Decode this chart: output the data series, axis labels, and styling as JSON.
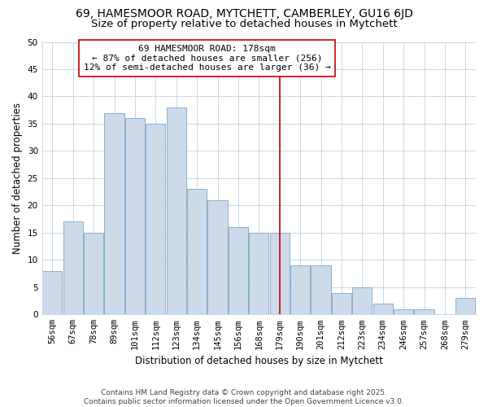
{
  "title1": "69, HAMESMOOR ROAD, MYTCHETT, CAMBERLEY, GU16 6JD",
  "title2": "Size of property relative to detached houses in Mytchett",
  "xlabel": "Distribution of detached houses by size in Mytchett",
  "ylabel": "Number of detached properties",
  "bar_labels": [
    "56sqm",
    "67sqm",
    "78sqm",
    "89sqm",
    "101sqm",
    "112sqm",
    "123sqm",
    "134sqm",
    "145sqm",
    "156sqm",
    "168sqm",
    "179sqm",
    "190sqm",
    "201sqm",
    "212sqm",
    "223sqm",
    "234sqm",
    "246sqm",
    "257sqm",
    "268sqm",
    "279sqm"
  ],
  "bar_values": [
    8,
    17,
    15,
    37,
    36,
    35,
    38,
    23,
    21,
    16,
    15,
    15,
    9,
    9,
    4,
    5,
    2,
    1,
    1,
    0,
    3
  ],
  "bar_color": "#ccdaea",
  "bar_edge_color": "#8ab0cc",
  "vline_x": 11,
  "vline_color": "#cc0000",
  "annotation_line1": "69 HAMESMOOR ROAD: 178sqm",
  "annotation_line2": "← 87% of detached houses are smaller (256)",
  "annotation_line3": "12% of semi-detached houses are larger (36) →",
  "annotation_box_color": "#ffffff",
  "annotation_box_edge": "#cc0000",
  "ylim": [
    0,
    50
  ],
  "yticks": [
    0,
    5,
    10,
    15,
    20,
    25,
    30,
    35,
    40,
    45,
    50
  ],
  "footer1": "Contains HM Land Registry data © Crown copyright and database right 2025.",
  "footer2": "Contains public sector information licensed under the Open Government Licence v3.0.",
  "bg_color": "#ffffff",
  "grid_color": "#c8d8e8",
  "title1_fontsize": 10,
  "title2_fontsize": 9.5,
  "axis_label_fontsize": 8.5,
  "tick_fontsize": 7.5,
  "annotation_fontsize": 8,
  "footer_fontsize": 6.5
}
